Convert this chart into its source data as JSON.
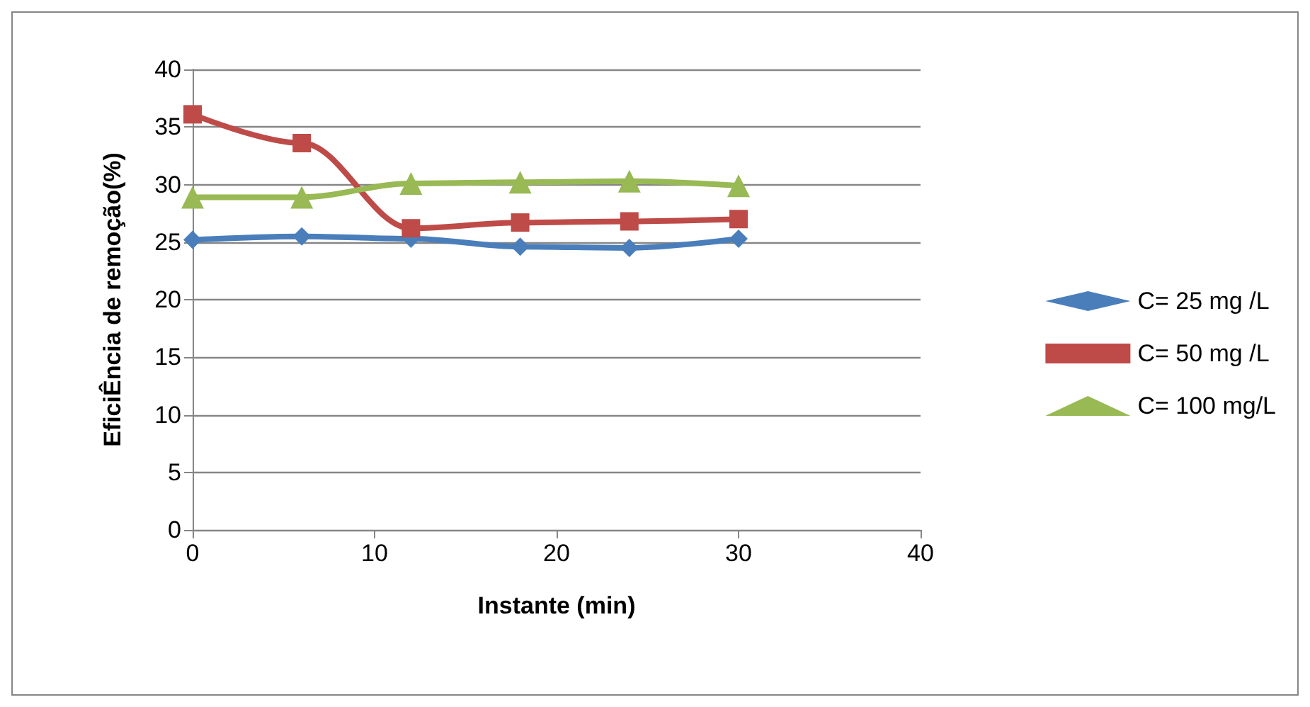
{
  "chart_data": {
    "type": "line",
    "xlabel": "Instante (min)",
    "ylabel": "EficiÊncia de remoção(%)",
    "x": [
      0,
      6,
      12,
      18,
      24,
      30
    ],
    "xlim": [
      0,
      40
    ],
    "xticks": [
      0,
      10,
      20,
      30,
      40
    ],
    "ylim": [
      0,
      40
    ],
    "yticks": [
      0,
      5,
      10,
      15,
      20,
      25,
      30,
      35,
      40
    ],
    "grid": "y",
    "legend": "right",
    "series": [
      {
        "name": "C= 25 mg /L",
        "color": "#4a7ebb",
        "marker": "diamond",
        "values": [
          25.2,
          25.5,
          25.3,
          24.6,
          24.5,
          25.3
        ]
      },
      {
        "name": "C= 50 mg /L",
        "color": "#be4b48",
        "marker": "square",
        "values": [
          36.1,
          33.6,
          26.2,
          26.7,
          26.8,
          27.0
        ]
      },
      {
        "name": "C= 100 mg/L",
        "color": "#98b954",
        "marker": "triangle",
        "values": [
          28.9,
          28.9,
          30.1,
          30.2,
          30.3,
          29.9
        ]
      }
    ]
  }
}
